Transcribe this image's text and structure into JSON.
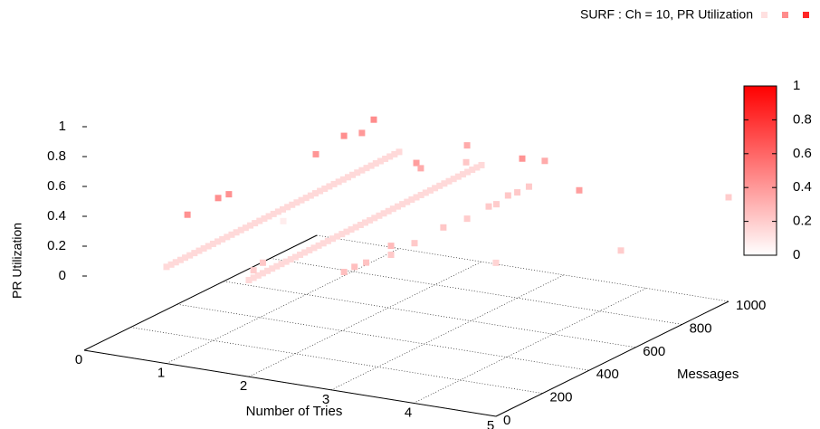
{
  "chart_data": {
    "type": "scatter3d",
    "xlabel": "Number of Tries",
    "ylabel": "Messages",
    "zlabel": "PR Utilization",
    "xlim": [
      0,
      5
    ],
    "ylim": [
      0,
      1000
    ],
    "zlim": [
      0,
      1
    ],
    "xticks": [
      0,
      1,
      2,
      3,
      4,
      5
    ],
    "yticks": [
      0,
      200,
      400,
      600,
      800,
      1000
    ],
    "zticks": [
      0,
      0.2,
      0.4,
      0.6,
      0.8,
      1
    ],
    "cblim": [
      0,
      1
    ],
    "cbticks": [
      0,
      0.2,
      0.4,
      0.6,
      0.8,
      1
    ],
    "palette": [
      "#ffffff",
      "#ff0000"
    ],
    "grid": true,
    "legend": "top-right",
    "series": [
      {
        "name": "SURF : Ch = 10, PR Utilization",
        "x": [
          1,
          1,
          1,
          1,
          1,
          1,
          1,
          1,
          1,
          1,
          1,
          1,
          1,
          1,
          1,
          1,
          1,
          1,
          1,
          1,
          1,
          1,
          1,
          1,
          1,
          1,
          1,
          1,
          1,
          1,
          1,
          1,
          1,
          1,
          1,
          1,
          1,
          1,
          1,
          1,
          1,
          1,
          1,
          1,
          1,
          1,
          1,
          1,
          1,
          1,
          1,
          2,
          2,
          2,
          2,
          2,
          2,
          2,
          2,
          2,
          2,
          2,
          2,
          2,
          2,
          2,
          2,
          2,
          2,
          2,
          2,
          2,
          2,
          2,
          2,
          2,
          2,
          2,
          2,
          2,
          2,
          2,
          2,
          2,
          2,
          2,
          2,
          2,
          2,
          2,
          2,
          2,
          2,
          2,
          2,
          2,
          2,
          2,
          2,
          2,
          2,
          2,
          1,
          1,
          1,
          1,
          1,
          1,
          1,
          1,
          2,
          2,
          2,
          2,
          3,
          3,
          3,
          3,
          3,
          3,
          3,
          4,
          4,
          5,
          5,
          3,
          3,
          3,
          3,
          3,
          3,
          3,
          3,
          2,
          2
        ],
        "y": [
          0,
          20,
          40,
          60,
          80,
          100,
          120,
          140,
          160,
          180,
          200,
          220,
          240,
          260,
          280,
          300,
          320,
          340,
          360,
          380,
          400,
          420,
          440,
          460,
          480,
          500,
          520,
          540,
          560,
          580,
          600,
          620,
          640,
          660,
          680,
          700,
          720,
          740,
          760,
          780,
          800,
          820,
          840,
          860,
          880,
          900,
          920,
          940,
          960,
          980,
          1000,
          0,
          20,
          40,
          60,
          80,
          100,
          120,
          140,
          160,
          180,
          200,
          220,
          240,
          260,
          280,
          300,
          320,
          340,
          360,
          380,
          400,
          420,
          440,
          460,
          480,
          500,
          520,
          540,
          560,
          580,
          600,
          620,
          640,
          660,
          680,
          700,
          720,
          740,
          760,
          780,
          800,
          820,
          840,
          860,
          880,
          900,
          920,
          940,
          960,
          980,
          1000,
          90,
          222,
          268,
          642,
          763,
          891,
          840,
          502,
          938,
          720,
          739,
          934,
          584,
          482,
          358,
          257,
          257,
          821,
          918,
          712,
          354,
          537,
          1000,
          677,
          710,
          760,
          800,
          850,
          55,
          100,
          150,
          20,
          60
        ],
        "z": [
          0.15,
          0.15,
          0.15,
          0.15,
          0.15,
          0.15,
          0.15,
          0.15,
          0.15,
          0.15,
          0.15,
          0.15,
          0.15,
          0.15,
          0.15,
          0.15,
          0.15,
          0.15,
          0.15,
          0.15,
          0.15,
          0.15,
          0.15,
          0.15,
          0.15,
          0.15,
          0.15,
          0.15,
          0.15,
          0.15,
          0.15,
          0.15,
          0.15,
          0.15,
          0.15,
          0.15,
          0.15,
          0.15,
          0.15,
          0.15,
          0.15,
          0.15,
          0.15,
          0.15,
          0.15,
          0.15,
          0.15,
          0.15,
          0.15,
          0.15,
          0.15,
          0.15,
          0.15,
          0.15,
          0.15,
          0.15,
          0.15,
          0.15,
          0.15,
          0.15,
          0.15,
          0.15,
          0.15,
          0.15,
          0.15,
          0.15,
          0.15,
          0.15,
          0.15,
          0.15,
          0.15,
          0.15,
          0.15,
          0.15,
          0.15,
          0.15,
          0.15,
          0.15,
          0.15,
          0.15,
          0.15,
          0.15,
          0.15,
          0.15,
          0.15,
          0.15,
          0.15,
          0.15,
          0.15,
          0.15,
          0.15,
          0.15,
          0.15,
          0.15,
          0.15,
          0.15,
          0.15,
          0.15,
          0.15,
          0.15,
          0.15,
          0.15,
          0.43,
          0.44,
          0.43,
          0.41,
          0.44,
          0.45,
          0.4,
          0.07,
          0.33,
          0.38,
          0.33,
          0.22,
          0.2,
          0.22,
          0.21,
          0.21,
          0.27,
          0.42,
          0.33,
          0.38,
          0.17,
          0.2,
          0.2,
          0.21,
          0.2,
          0.22,
          0.21,
          0.21,
          0.25,
          0.25,
          0.24,
          0.2,
          0.22
        ]
      }
    ]
  }
}
